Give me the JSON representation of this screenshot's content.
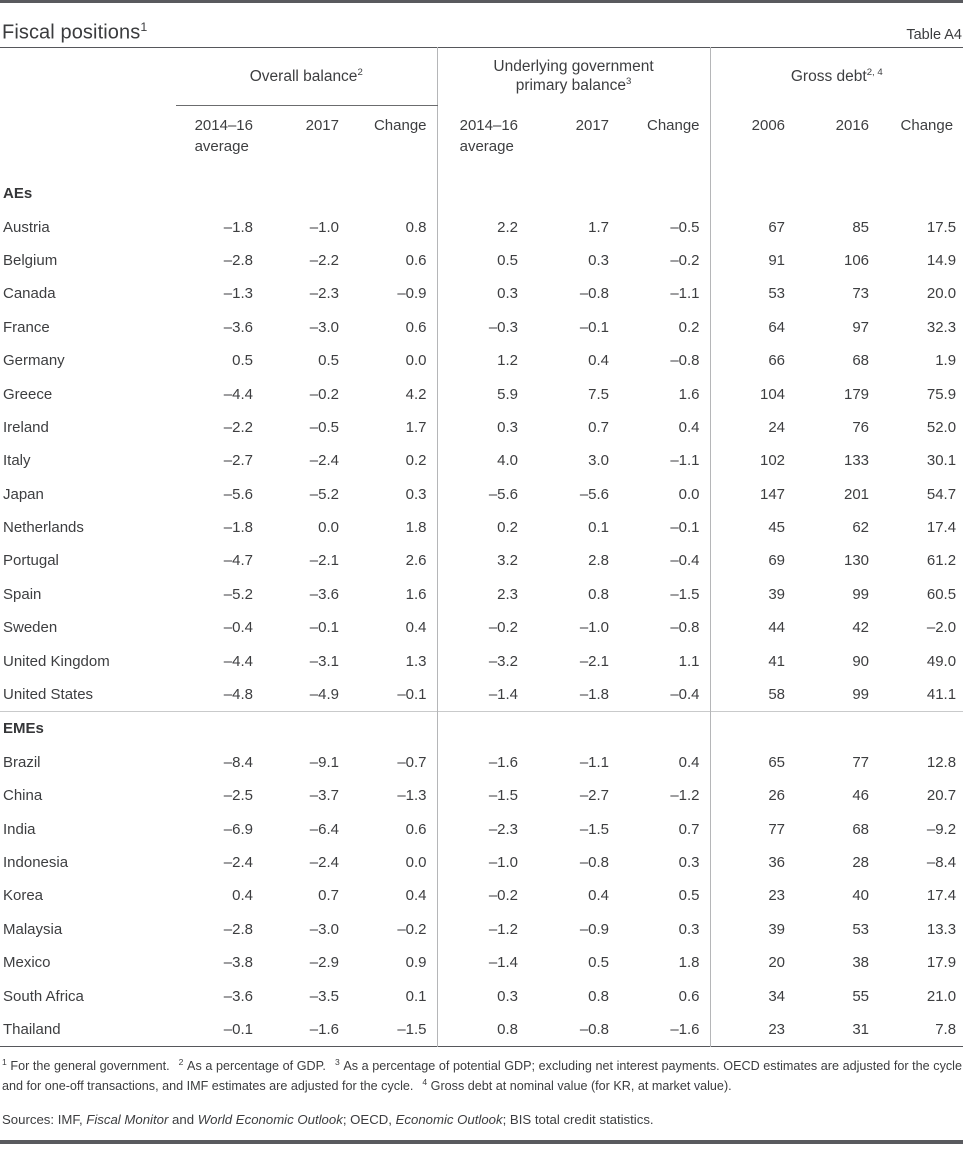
{
  "page": {
    "title": "Fiscal positions",
    "title_footnote_marker": "1",
    "table_label": "Table A4"
  },
  "table": {
    "column_groups": [
      {
        "label": "Overall balance",
        "footnote_marker": "2",
        "subcolumns": [
          "2014–16\naverage",
          "2017",
          "Change"
        ]
      },
      {
        "label": "Underlying government\nprimary balance",
        "footnote_marker": "3",
        "subcolumns": [
          "2014–16\naverage",
          "2017",
          "Change"
        ]
      },
      {
        "label": "Gross debt",
        "footnote_marker": "2, 4",
        "subcolumns": [
          "2006",
          "2016",
          "Change"
        ]
      }
    ],
    "sections": [
      {
        "label": "AEs",
        "rows": [
          {
            "country": "Austria",
            "values": [
              "–1.8",
              "–1.0",
              "0.8",
              "2.2",
              "1.7",
              "–0.5",
              "67",
              "85",
              "17.5"
            ]
          },
          {
            "country": "Belgium",
            "values": [
              "–2.8",
              "–2.2",
              "0.6",
              "0.5",
              "0.3",
              "–0.2",
              "91",
              "106",
              "14.9"
            ]
          },
          {
            "country": "Canada",
            "values": [
              "–1.3",
              "–2.3",
              "–0.9",
              "0.3",
              "–0.8",
              "–1.1",
              "53",
              "73",
              "20.0"
            ]
          },
          {
            "country": "France",
            "values": [
              "–3.6",
              "–3.0",
              "0.6",
              "–0.3",
              "–0.1",
              "0.2",
              "64",
              "97",
              "32.3"
            ]
          },
          {
            "country": "Germany",
            "values": [
              "0.5",
              "0.5",
              "0.0",
              "1.2",
              "0.4",
              "–0.8",
              "66",
              "68",
              "1.9"
            ]
          },
          {
            "country": "Greece",
            "values": [
              "–4.4",
              "–0.2",
              "4.2",
              "5.9",
              "7.5",
              "1.6",
              "104",
              "179",
              "75.9"
            ]
          },
          {
            "country": "Ireland",
            "values": [
              "–2.2",
              "–0.5",
              "1.7",
              "0.3",
              "0.7",
              "0.4",
              "24",
              "76",
              "52.0"
            ]
          },
          {
            "country": "Italy",
            "values": [
              "–2.7",
              "–2.4",
              "0.2",
              "4.0",
              "3.0",
              "–1.1",
              "102",
              "133",
              "30.1"
            ]
          },
          {
            "country": "Japan",
            "values": [
              "–5.6",
              "–5.2",
              "0.3",
              "–5.6",
              "–5.6",
              "0.0",
              "147",
              "201",
              "54.7"
            ]
          },
          {
            "country": "Netherlands",
            "values": [
              "–1.8",
              "0.0",
              "1.8",
              "0.2",
              "0.1",
              "–0.1",
              "45",
              "62",
              "17.4"
            ]
          },
          {
            "country": "Portugal",
            "values": [
              "–4.7",
              "–2.1",
              "2.6",
              "3.2",
              "2.8",
              "–0.4",
              "69",
              "130",
              "61.2"
            ]
          },
          {
            "country": "Spain",
            "values": [
              "–5.2",
              "–3.6",
              "1.6",
              "2.3",
              "0.8",
              "–1.5",
              "39",
              "99",
              "60.5"
            ]
          },
          {
            "country": "Sweden",
            "values": [
              "–0.4",
              "–0.1",
              "0.4",
              "–0.2",
              "–1.0",
              "–0.8",
              "44",
              "42",
              "–2.0"
            ]
          },
          {
            "country": "United Kingdom",
            "values": [
              "–4.4",
              "–3.1",
              "1.3",
              "–3.2",
              "–2.1",
              "1.1",
              "41",
              "90",
              "49.0"
            ]
          },
          {
            "country": "United States",
            "values": [
              "–4.8",
              "–4.9",
              "–0.1",
              "–1.4",
              "–1.8",
              "–0.4",
              "58",
              "99",
              "41.1"
            ]
          }
        ]
      },
      {
        "label": "EMEs",
        "rows": [
          {
            "country": "Brazil",
            "values": [
              "–8.4",
              "–9.1",
              "–0.7",
              "–1.6",
              "–1.1",
              "0.4",
              "65",
              "77",
              "12.8"
            ]
          },
          {
            "country": "China",
            "values": [
              "–2.5",
              "–3.7",
              "–1.3",
              "–1.5",
              "–2.7",
              "–1.2",
              "26",
              "46",
              "20.7"
            ]
          },
          {
            "country": "India",
            "values": [
              "–6.9",
              "–6.4",
              "0.6",
              "–2.3",
              "–1.5",
              "0.7",
              "77",
              "68",
              "–9.2"
            ]
          },
          {
            "country": "Indonesia",
            "values": [
              "–2.4",
              "–2.4",
              "0.0",
              "–1.0",
              "–0.8",
              "0.3",
              "36",
              "28",
              "–8.4"
            ]
          },
          {
            "country": "Korea",
            "values": [
              "0.4",
              "0.7",
              "0.4",
              "–0.2",
              "0.4",
              "0.5",
              "23",
              "40",
              "17.4"
            ]
          },
          {
            "country": "Malaysia",
            "values": [
              "–2.8",
              "–3.0",
              "–0.2",
              "–1.2",
              "–0.9",
              "0.3",
              "39",
              "53",
              "13.3"
            ]
          },
          {
            "country": "Mexico",
            "values": [
              "–3.8",
              "–2.9",
              "0.9",
              "–1.4",
              "0.5",
              "1.8",
              "20",
              "38",
              "17.9"
            ]
          },
          {
            "country": "South Africa",
            "values": [
              "–3.6",
              "–3.5",
              "0.1",
              "0.3",
              "0.8",
              "0.6",
              "34",
              "55",
              "21.0"
            ]
          },
          {
            "country": "Thailand",
            "values": [
              "–0.1",
              "–1.6",
              "–1.5",
              "0.8",
              "–0.8",
              "–1.6",
              "23",
              "31",
              "7.8"
            ]
          }
        ]
      }
    ]
  },
  "footnotes": [
    {
      "marker": "1",
      "text": "For the general government."
    },
    {
      "marker": "2",
      "text": "As a percentage of GDP."
    },
    {
      "marker": "3",
      "text": "As a percentage of potential GDP; excluding net interest payments. OECD estimates are adjusted for the cycle and for one-off transactions, and IMF estimates are adjusted for the cycle."
    },
    {
      "marker": "4",
      "text": "Gross debt at nominal value (for KR, at market value)."
    }
  ],
  "sources_line": [
    {
      "text": "Sources: IMF, "
    },
    {
      "text": "Fiscal Monitor",
      "italic": true
    },
    {
      "text": " and "
    },
    {
      "text": "World Economic Outlook",
      "italic": true
    },
    {
      "text": "; OECD, "
    },
    {
      "text": "Economic Outlook",
      "italic": true
    },
    {
      "text": "; BIS total credit statistics."
    }
  ]
}
